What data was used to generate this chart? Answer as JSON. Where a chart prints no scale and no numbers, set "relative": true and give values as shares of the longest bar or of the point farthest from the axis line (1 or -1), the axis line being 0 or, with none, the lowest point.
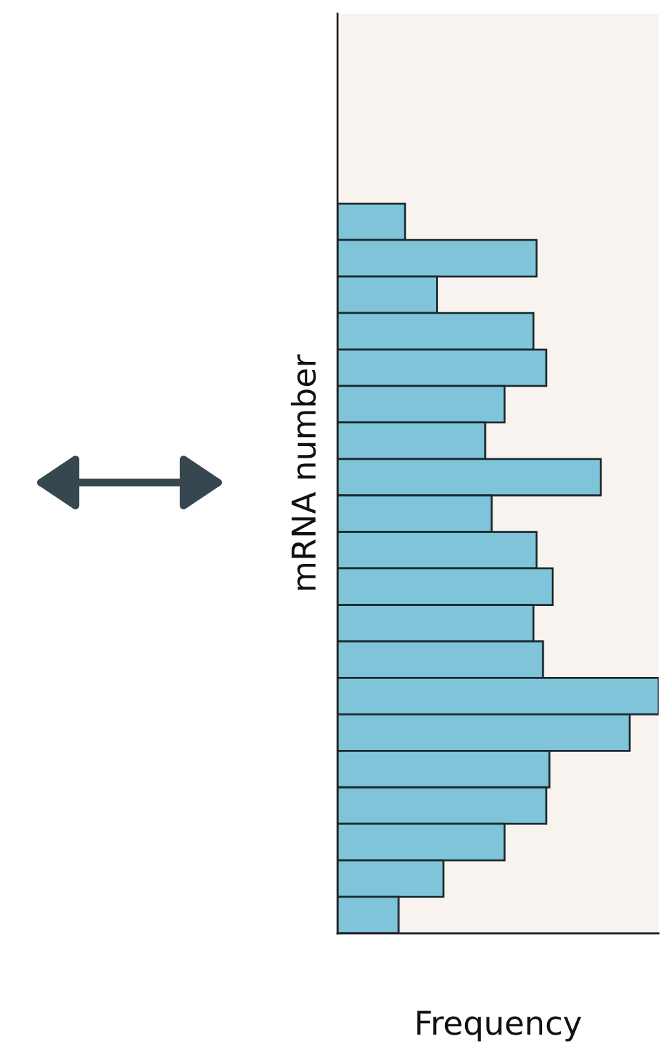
{
  "chart_data": {
    "type": "bar",
    "orientation": "horizontal",
    "relative": true,
    "xlabel": "Frequency",
    "ylabel": "mRNA number",
    "categories": [
      null,
      null,
      null,
      null,
      null,
      null,
      null,
      null,
      null,
      null,
      null,
      null,
      null,
      null,
      null,
      null,
      null,
      null,
      null,
      null
    ],
    "values": [
      0.21,
      0.62,
      0.31,
      0.61,
      0.65,
      0.52,
      0.46,
      0.82,
      0.48,
      0.62,
      0.67,
      0.61,
      0.64,
      1,
      0.91,
      0.66,
      0.65,
      0.52,
      0.33,
      0.19
    ],
    "color": "#7fc4d8",
    "tick_labels": false,
    "grid": false,
    "legend": false
  }
}
